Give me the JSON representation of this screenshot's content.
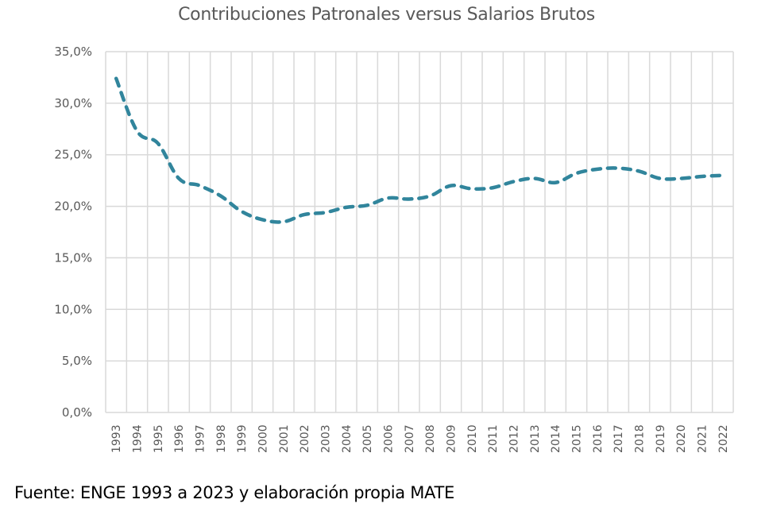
{
  "chart_data": {
    "type": "line",
    "title": "Contribuciones  Patronales versus Salarios Brutos",
    "xlabel": "",
    "ylabel": "",
    "categories": [
      "1993",
      "1994",
      "1995",
      "1996",
      "1997",
      "1998",
      "1999",
      "2000",
      "2001",
      "2002",
      "2003",
      "2004",
      "2005",
      "2006",
      "2007",
      "2008",
      "2009",
      "2010",
      "2011",
      "2012",
      "2013",
      "2014",
      "2015",
      "2016",
      "2017",
      "2018",
      "2019",
      "2020",
      "2021",
      "2022"
    ],
    "series": [
      {
        "name": "Contribuciones Patronales / Salarios Brutos",
        "color": "#31859C",
        "style": "dashed",
        "values": [
          32.4,
          27.3,
          26.1,
          22.7,
          22.0,
          21.0,
          19.5,
          18.7,
          18.5,
          19.2,
          19.4,
          19.9,
          20.1,
          20.8,
          20.7,
          21.0,
          22.0,
          21.7,
          21.8,
          22.4,
          22.7,
          22.3,
          23.2,
          23.6,
          23.7,
          23.4,
          22.7,
          22.7,
          22.9,
          23.0
        ]
      }
    ],
    "ylim": [
      0,
      35
    ],
    "yticks": [
      0,
      5,
      10,
      15,
      20,
      25,
      30,
      35
    ],
    "ytick_labels": [
      "0,0%",
      "5,0%",
      "10,0%",
      "15,0%",
      "20,0%",
      "25,0%",
      "30,0%",
      "35,0%"
    ],
    "grid": true,
    "legend": "none",
    "source_note": "Fuente: ENGE 1993 a 2023 y elaboración propia MATE"
  },
  "colors": {
    "line": "#31859C",
    "grid": "#D9D9D9",
    "text": "#595959"
  }
}
